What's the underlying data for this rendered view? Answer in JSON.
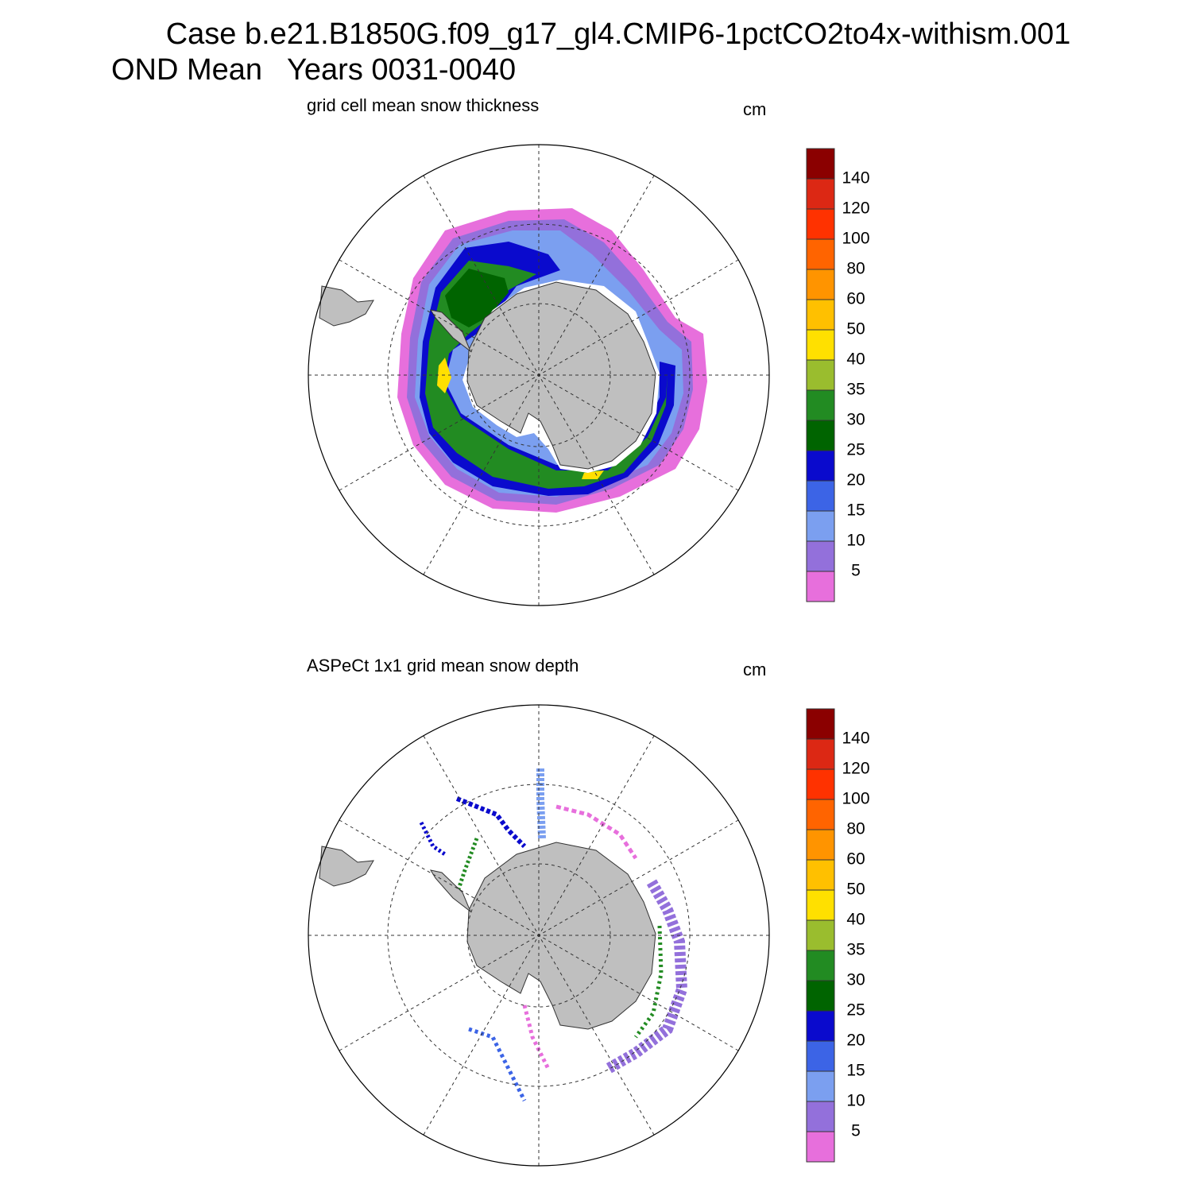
{
  "header": {
    "title": "Case b.e21.B1850G.f09_g17_gl4.CMIP6-1pctCO2to4x-withism.001",
    "subtitle": "OND Mean   Years 0031-0040"
  },
  "panels": [
    {
      "title": "grid cell mean snow thickness",
      "units": "cm"
    },
    {
      "title": "ASPeCt 1x1 grid mean snow depth",
      "units": "cm"
    }
  ],
  "colorbar": {
    "levels": [
      5,
      10,
      15,
      20,
      25,
      30,
      35,
      40,
      50,
      60,
      80,
      100,
      120,
      140
    ],
    "colors": [
      "#e76fdc",
      "#9370db",
      "#7b9ff0",
      "#3c64e6",
      "#0a0acd",
      "#006400",
      "#228b22",
      "#9abd2e",
      "#ffe000",
      "#ffc000",
      "#ff9400",
      "#ff6400",
      "#ff3200",
      "#dc2814",
      "#8b0000"
    ]
  }
}
